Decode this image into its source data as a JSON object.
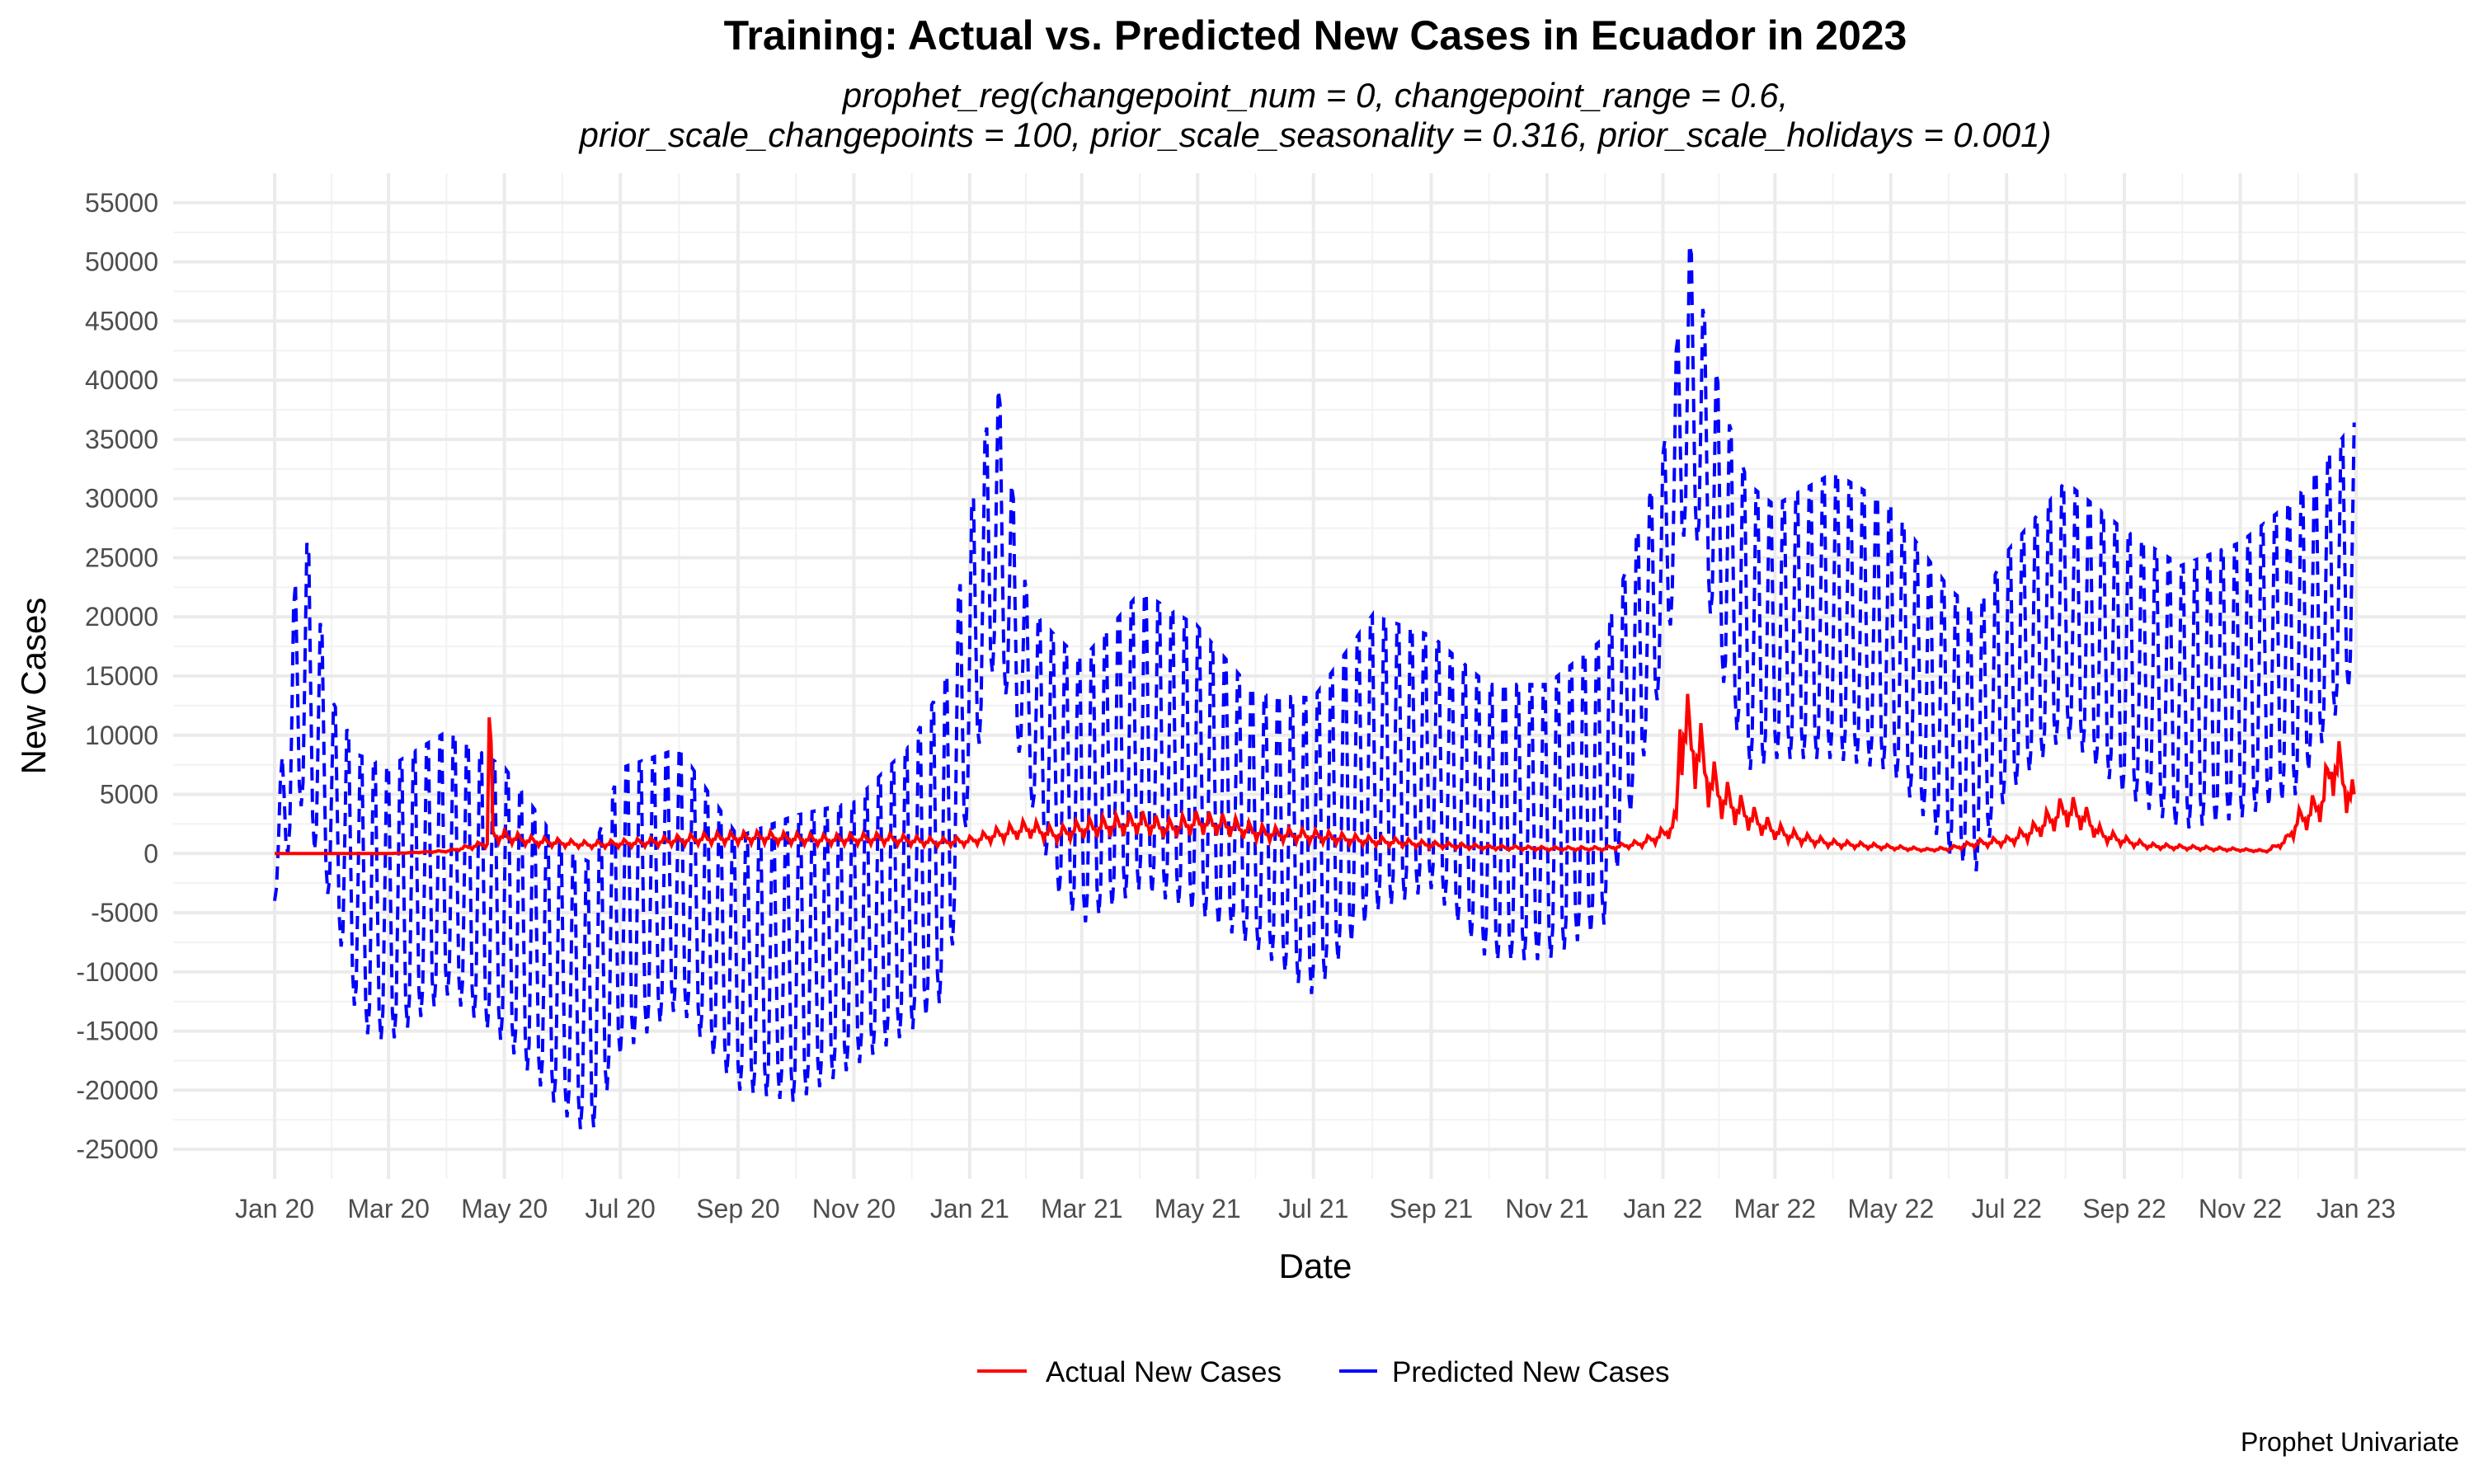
{
  "chart_data": {
    "type": "line",
    "title": "Training: Actual vs. Predicted New Cases in Ecuador in 2023",
    "subtitle_line1": "prophet_reg(changepoint_num = 0, changepoint_range = 0.6,",
    "subtitle_line2": "prior_scale_changepoints = 100, prior_scale_seasonality = 0.316, prior_scale_holidays = 0.001)",
    "xlabel": "Date",
    "ylabel": "New Cases",
    "caption": "Prophet Univariate",
    "legend_position": "bottom",
    "grid": true,
    "x_range": [
      "2020-01-01",
      "2023-01-01"
    ],
    "ylim": [
      -27500,
      57500
    ],
    "y_ticks": [
      -25000,
      -20000,
      -15000,
      -10000,
      -5000,
      0,
      5000,
      10000,
      15000,
      20000,
      25000,
      30000,
      35000,
      40000,
      45000,
      50000,
      55000
    ],
    "y_tick_labels": [
      "-25000",
      "-20000",
      "-15000",
      "-10000",
      "-5000",
      "0",
      "5000",
      "10000",
      "15000",
      "20000",
      "25000",
      "30000",
      "35000",
      "40000",
      "45000",
      "50000",
      "55000"
    ],
    "x_ticks": [
      "2020-01-01",
      "2020-03-01",
      "2020-05-01",
      "2020-07-01",
      "2020-09-01",
      "2020-11-01",
      "2021-01-01",
      "2021-03-01",
      "2021-05-01",
      "2021-07-01",
      "2021-09-01",
      "2021-11-01",
      "2022-01-01",
      "2022-03-01",
      "2022-05-01",
      "2022-07-01",
      "2022-09-01",
      "2022-11-01",
      "2023-01-01"
    ],
    "x_tick_labels": [
      "Jan 20",
      "Mar 20",
      "May 20",
      "Jul 20",
      "Sep 20",
      "Nov 20",
      "Jan 21",
      "Mar 21",
      "May 21",
      "Jul 21",
      "Sep 21",
      "Nov 21",
      "Jan 22",
      "Mar 22",
      "May 22",
      "Jul 22",
      "Sep 22",
      "Nov 22",
      "Jan 23"
    ],
    "series": [
      {
        "name": "Actual New Cases",
        "color": "#ff0000",
        "style": "solid",
        "x": [
          "2020-01-01",
          "2020-03-01",
          "2020-04-01",
          "2020-04-22",
          "2020-04-23",
          "2020-04-25",
          "2020-05-15",
          "2020-06-15",
          "2020-07-15",
          "2020-08-15",
          "2020-09-15",
          "2020-10-15",
          "2020-11-15",
          "2020-12-15",
          "2021-01-01",
          "2021-01-15",
          "2021-02-01",
          "2021-02-15",
          "2021-03-01",
          "2021-03-15",
          "2021-04-01",
          "2021-04-15",
          "2021-05-01",
          "2021-05-15",
          "2021-06-01",
          "2021-06-15",
          "2021-07-01",
          "2021-07-15",
          "2021-08-01",
          "2021-08-15",
          "2021-09-01",
          "2021-10-01",
          "2021-11-01",
          "2021-12-01",
          "2021-12-20",
          "2022-01-01",
          "2022-01-08",
          "2022-01-10",
          "2022-01-15",
          "2022-01-20",
          "2022-01-25",
          "2022-02-01",
          "2022-02-10",
          "2022-02-20",
          "2022-03-01",
          "2022-03-15",
          "2022-04-01",
          "2022-05-01",
          "2022-05-20",
          "2022-06-01",
          "2022-06-15",
          "2022-07-01",
          "2022-07-15",
          "2022-07-25",
          "2022-08-01",
          "2022-08-10",
          "2022-08-20",
          "2022-09-01",
          "2022-09-15",
          "2022-10-01",
          "2022-11-01",
          "2022-11-15",
          "2022-11-25",
          "2022-12-01",
          "2022-12-10",
          "2022-12-15",
          "2022-12-20",
          "2022-12-31"
        ],
        "y": [
          0,
          0,
          200,
          800,
          11500,
          1500,
          1000,
          700,
          900,
          1200,
          1300,
          1100,
          1200,
          900,
          1000,
          1500,
          2000,
          1500,
          2000,
          2200,
          2500,
          2000,
          2500,
          2300,
          1700,
          1500,
          1400,
          1200,
          1000,
          900,
          700,
          500,
          400,
          400,
          800,
          1500,
          2500,
          10500,
          9000,
          8000,
          6000,
          4500,
          3500,
          2500,
          1800,
          1200,
          800,
          500,
          300,
          400,
          800,
          1000,
          1800,
          2800,
          3500,
          3000,
          1500,
          1000,
          600,
          500,
          300,
          200,
          1000,
          2500,
          3500,
          4500,
          7500,
          4000
        ]
      },
      {
        "name": "Predicted New Cases",
        "color": "#0000ff",
        "style": "dashed",
        "x": [
          "2020-01-01",
          "2020-01-15",
          "2020-02-01",
          "2020-02-15",
          "2020-03-01",
          "2020-04-01",
          "2020-05-01",
          "2020-06-01",
          "2020-06-15",
          "2020-07-01",
          "2020-08-01",
          "2020-09-01",
          "2020-10-01",
          "2020-11-01",
          "2020-12-01",
          "2020-12-20",
          "2021-01-01",
          "2021-01-15",
          "2021-02-01",
          "2021-02-15",
          "2021-03-01",
          "2021-04-01",
          "2021-05-01",
          "2021-06-01",
          "2021-07-01",
          "2021-08-01",
          "2021-09-01",
          "2021-10-01",
          "2021-11-01",
          "2021-12-01",
          "2022-01-01",
          "2022-01-15",
          "2022-02-01",
          "2022-02-15",
          "2022-03-01",
          "2022-04-01",
          "2022-05-01",
          "2022-06-01",
          "2022-06-15",
          "2022-07-01",
          "2022-08-01",
          "2022-09-01",
          "2022-10-01",
          "2022-11-01",
          "2022-12-01",
          "2022-12-31"
        ],
        "upper": [
          0,
          31000,
          14000,
          10000,
          9000,
          12000,
          9000,
          2000,
          1000,
          9000,
          10500,
          3000,
          5000,
          6000,
          11000,
          17000,
          30000,
          42000,
          22000,
          20000,
          18000,
          24000,
          21000,
          15000,
          15000,
          22000,
          20000,
          16000,
          16000,
          20000,
          35000,
          53000,
          40000,
          33000,
          31000,
          34000,
          31000,
          24000,
          22000,
          27000,
          33000,
          29000,
          26000,
          28000,
          32000,
          38000
        ],
        "lower": [
          -4000,
          4000,
          -5000,
          -15000,
          -16000,
          -12000,
          -16000,
          -22000,
          -24000,
          -17000,
          -13000,
          -20000,
          -21000,
          -18000,
          -15000,
          -12000,
          5000,
          17000,
          5000,
          -3000,
          -6000,
          -3000,
          -5000,
          -8000,
          -12000,
          -5000,
          -3000,
          -9000,
          -9000,
          -6000,
          15000,
          30000,
          15000,
          7000,
          8000,
          8000,
          7000,
          0,
          -1500,
          5000,
          10000,
          5000,
          2000,
          3000,
          5000,
          15000
        ]
      }
    ]
  }
}
